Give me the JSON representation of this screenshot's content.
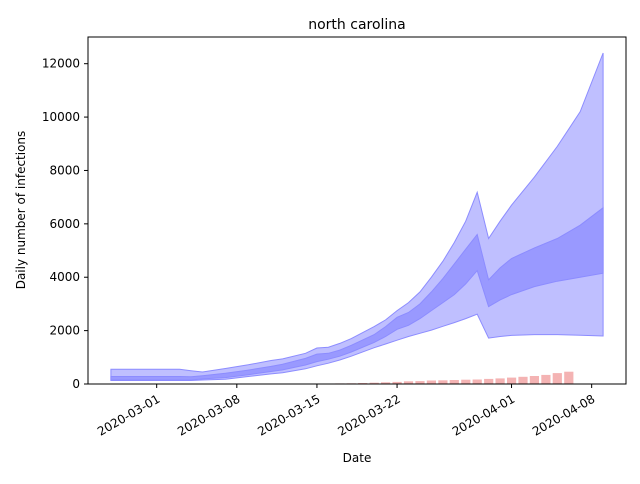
{
  "chart_data": {
    "type": "area",
    "title": "north carolina",
    "xlabel": "Date",
    "ylabel": "Daily number of infections",
    "x_start": "2020-02-26",
    "xlim": [
      "2020-02-24",
      "2020-04-11"
    ],
    "ylim": [
      0,
      13000
    ],
    "x_ticks": [
      "2020-03-01",
      "2020-03-08",
      "2020-03-15",
      "2020-03-22",
      "2020-04-01",
      "2020-04-08"
    ],
    "y_ticks": [
      0,
      2000,
      4000,
      6000,
      8000,
      10000,
      12000
    ],
    "y_tick_labels": [
      "0",
      "2000",
      "4000",
      "6000",
      "8000",
      "10000",
      "12000"
    ],
    "grid": false,
    "colors": {
      "outer_band": "#bfbfff",
      "inner_band": "#9999ff",
      "band_edge": "#8c8cff",
      "observed_bars": "#f4b3b3"
    },
    "outer_band": {
      "x": [
        "2020-02-26",
        "2020-03-03",
        "2020-03-04",
        "2020-03-05",
        "2020-03-07",
        "2020-03-09",
        "2020-03-11",
        "2020-03-12",
        "2020-03-14",
        "2020-03-15",
        "2020-03-16",
        "2020-03-17",
        "2020-03-18",
        "2020-03-20",
        "2020-03-21",
        "2020-03-22",
        "2020-03-23",
        "2020-03-24",
        "2020-03-25",
        "2020-03-26",
        "2020-03-27",
        "2020-03-28",
        "2020-03-29",
        "2020-03-30",
        "2020-03-31",
        "2020-04-01",
        "2020-04-03",
        "2020-04-05",
        "2020-04-07",
        "2020-04-09"
      ],
      "upper": [
        550,
        550,
        500,
        450,
        580,
        720,
        880,
        940,
        1150,
        1350,
        1380,
        1520,
        1700,
        2150,
        2400,
        2750,
        3050,
        3450,
        4000,
        4600,
        5300,
        6100,
        7180,
        5450,
        6100,
        6700,
        7750,
        8900,
        10200,
        12400
      ],
      "lower": [
        130,
        130,
        130,
        150,
        180,
        280,
        380,
        420,
        570,
        680,
        780,
        900,
        1040,
        1360,
        1500,
        1640,
        1780,
        1900,
        2020,
        2160,
        2300,
        2450,
        2620,
        1720,
        1780,
        1820,
        1850,
        1850,
        1830,
        1800
      ]
    },
    "inner_band": {
      "x": [
        "2020-02-26",
        "2020-03-03",
        "2020-03-04",
        "2020-03-05",
        "2020-03-07",
        "2020-03-09",
        "2020-03-11",
        "2020-03-12",
        "2020-03-14",
        "2020-03-15",
        "2020-03-16",
        "2020-03-17",
        "2020-03-18",
        "2020-03-20",
        "2020-03-21",
        "2020-03-22",
        "2020-03-23",
        "2020-03-24",
        "2020-03-25",
        "2020-03-26",
        "2020-03-27",
        "2020-03-28",
        "2020-03-29",
        "2020-03-30",
        "2020-03-31",
        "2020-04-01",
        "2020-04-03",
        "2020-04-05",
        "2020-04-07",
        "2020-04-09"
      ],
      "upper": [
        280,
        280,
        270,
        310,
        400,
        520,
        660,
        740,
        960,
        1120,
        1150,
        1270,
        1450,
        1850,
        2150,
        2500,
        2680,
        3000,
        3450,
        3950,
        4500,
        5050,
        5600,
        3900,
        4350,
        4700,
        5100,
        5450,
        5950,
        6600
      ],
      "lower": [
        150,
        150,
        150,
        190,
        240,
        350,
        470,
        530,
        710,
        840,
        930,
        1040,
        1200,
        1560,
        1780,
        2050,
        2200,
        2450,
        2750,
        3050,
        3350,
        3750,
        4250,
        2900,
        3150,
        3350,
        3650,
        3850,
        4000,
        4150
      ]
    },
    "observed": {
      "x": [
        "2020-03-12",
        "2020-03-13",
        "2020-03-14",
        "2020-03-15",
        "2020-03-16",
        "2020-03-17",
        "2020-03-18",
        "2020-03-19",
        "2020-03-20",
        "2020-03-21",
        "2020-03-22",
        "2020-03-23",
        "2020-03-24",
        "2020-03-25",
        "2020-03-26",
        "2020-03-27",
        "2020-03-28",
        "2020-03-29",
        "2020-03-30",
        "2020-03-31",
        "2020-04-01",
        "2020-04-02",
        "2020-04-03",
        "2020-04-04",
        "2020-04-05",
        "2020-04-06"
      ],
      "values": [
        8,
        10,
        12,
        15,
        18,
        22,
        28,
        38,
        50,
        65,
        80,
        100,
        110,
        130,
        140,
        150,
        160,
        170,
        190,
        210,
        240,
        270,
        300,
        340,
        410,
        460
      ]
    }
  }
}
